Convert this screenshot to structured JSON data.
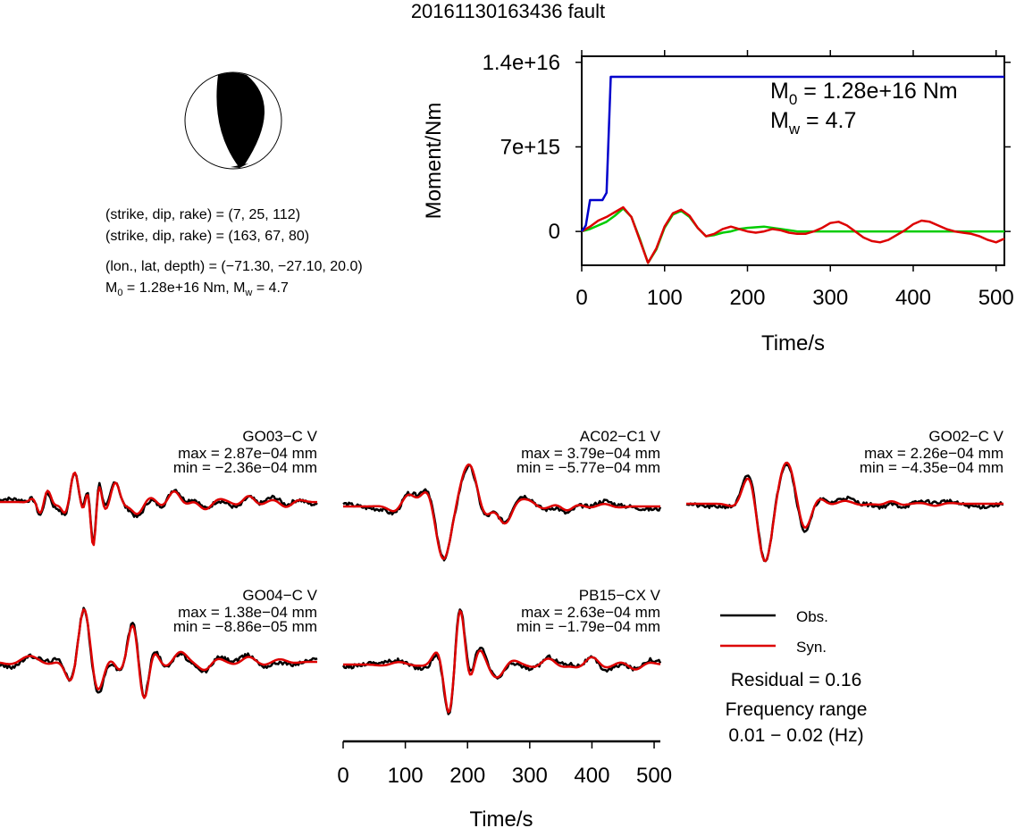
{
  "title": "20161130163436 fault",
  "mechanism": {
    "lines": [
      "(strike, dip, rake) = (7, 25, 112)",
      "(strike, dip, rake) = (163, 67, 80)",
      "(lon., lat, depth) = (−71.30, −27.10, 20.0)"
    ],
    "moment_line_pre": "M",
    "moment_line_sub": "0",
    "moment_line_post": " = 1.28e+16 Nm, M",
    "moment_line_sub2": "w",
    "moment_line_end": " = 4.7"
  },
  "chart_data": [
    {
      "type": "line",
      "name": "moment-rate-function",
      "xlabel": "Time/s",
      "ylabel": "Moment/Nm",
      "xlim": [
        0,
        510
      ],
      "ylim": [
        -2800000000000000.0,
        1.45e+16
      ],
      "xticks": [
        0,
        100,
        200,
        300,
        400,
        500
      ],
      "ytick_values": [
        0,
        7000000000000000.0,
        1.4e+16
      ],
      "ytick_labels": [
        "0",
        "7e+15",
        "1.4e+16"
      ],
      "annotation": {
        "m0_label": "M",
        "m0_sub": "0",
        "m0_value": " = 1.28e+16 Nm",
        "mw_label": "M",
        "mw_sub": "w",
        "mw_value": " = 4.7"
      },
      "series": [
        {
          "color": "#0000cc",
          "x": [
            0,
            5,
            10,
            15,
            20,
            25,
            30,
            35,
            40,
            45,
            50,
            510
          ],
          "y": [
            0,
            500000000000000.0,
            2600000000000000.0,
            2600000000000000.0,
            2600000000000000.0,
            2600000000000000.0,
            3200000000000000.0,
            1.28e+16,
            1.28e+16,
            1.28e+16,
            1.28e+16,
            1.28e+16
          ]
        },
        {
          "color": "#00cc00",
          "x": [
            0,
            10,
            20,
            30,
            40,
            50,
            60,
            70,
            80,
            90,
            100,
            110,
            120,
            130,
            140,
            150,
            160,
            170,
            180,
            190,
            200,
            220,
            240,
            260,
            280,
            300,
            320,
            340,
            360,
            380,
            400,
            420,
            440,
            460,
            480,
            510
          ],
          "y": [
            0,
            200000000000000.0,
            500000000000000.0,
            800000000000000.0,
            1300000000000000.0,
            1900000000000000.0,
            1200000000000000.0,
            -600000000000000.0,
            -2600000000000000.0,
            -1500000000000000.0,
            300000000000000.0,
            1400000000000000.0,
            1700000000000000.0,
            1200000000000000.0,
            300000000000000.0,
            -400000000000000.0,
            -300000000000000.0,
            -100000000000000.0,
            0,
            200000000000000.0,
            300000000000000.0,
            400000000000000.0,
            200000000000000.0,
            0,
            0,
            0,
            0,
            0,
            0,
            0,
            0,
            0,
            0,
            0,
            0,
            0
          ]
        },
        {
          "color": "#dd0000",
          "x": [
            0,
            10,
            20,
            30,
            40,
            50,
            60,
            70,
            80,
            90,
            100,
            110,
            120,
            130,
            140,
            150,
            160,
            170,
            180,
            190,
            200,
            210,
            220,
            230,
            240,
            250,
            260,
            270,
            280,
            290,
            300,
            310,
            320,
            330,
            340,
            350,
            360,
            370,
            380,
            390,
            400,
            410,
            420,
            430,
            440,
            450,
            460,
            470,
            480,
            490,
            500,
            510
          ],
          "y": [
            0,
            400000000000000.0,
            900000000000000.0,
            1200000000000000.0,
            1600000000000000.0,
            2000000000000000.0,
            1200000000000000.0,
            -700000000000000.0,
            -2600000000000000.0,
            -1400000000000000.0,
            400000000000000.0,
            1500000000000000.0,
            1800000000000000.0,
            1300000000000000.0,
            300000000000000.0,
            -400000000000000.0,
            -200000000000000.0,
            200000000000000.0,
            400000000000000.0,
            200000000000000.0,
            0,
            -100000000000000.0,
            0,
            200000000000000.0,
            100000000000000.0,
            -100000000000000.0,
            -200000000000000.0,
            -200000000000000.0,
            0,
            300000000000000.0,
            700000000000000.0,
            800000000000000.0,
            500000000000000.0,
            0,
            -500000000000000.0,
            -800000000000000.0,
            -900000000000000.0,
            -700000000000000.0,
            -300000000000000.0,
            100000000000000.0,
            600000000000000.0,
            900000000000000.0,
            800000000000000.0,
            500000000000000.0,
            200000000000000.0,
            0,
            -100000000000000.0,
            -200000000000000.0,
            -400000000000000.0,
            -700000000000000.0,
            -900000000000000.0,
            -600000000000000.0
          ]
        }
      ]
    },
    {
      "type": "line",
      "name": "waveforms",
      "xlabel": "Time/s",
      "xlim": [
        0,
        510
      ],
      "xticks": [
        0,
        100,
        200,
        300,
        400,
        500
      ],
      "legend": {
        "obs": "Obs.",
        "syn": "Syn.",
        "obs_color": "#000000",
        "syn_color": "#dd0000"
      },
      "residual": "Residual = 0.16",
      "freq_label": "Frequency range",
      "freq_value": "0.01 − 0.02 (Hz)",
      "stations": [
        {
          "name": "GO03−C V",
          "max": "max = 2.87e−04 mm",
          "min": "min = −2.36e−04 mm",
          "seed": 1,
          "events": [
            [
              68,
              55,
              -0.3,
              1.6
            ],
            [
              73,
              55,
              0.3,
              1.6
            ],
            [
              120,
              40,
              0.6,
              1.0
            ],
            [
              150,
              25,
              -0.9,
              1.0
            ],
            [
              185,
              40,
              0.35,
              1.0
            ],
            [
              220,
              60,
              -0.25,
              1.0
            ],
            [
              280,
              55,
              0.22,
              1.0
            ],
            [
              330,
              60,
              -0.15,
              1.0
            ],
            [
              400,
              50,
              0.12,
              1.0
            ],
            [
              460,
              55,
              -0.1,
              1.0
            ]
          ]
        },
        {
          "name": "AC02−C1 V",
          "max": "max = 3.79e−04 mm",
          "min": "min = −5.77e−04 mm",
          "seed": 2,
          "events": [
            [
              105,
              60,
              0.25,
              1.0
            ],
            [
              160,
              70,
              -1.0,
              1.0
            ],
            [
              205,
              70,
              0.75,
              1.0
            ],
            [
              260,
              60,
              -0.35,
              1.0
            ],
            [
              300,
              60,
              0.1,
              1.0
            ],
            [
              360,
              50,
              -0.08,
              1.0
            ],
            [
              420,
              60,
              0.05,
              1.0
            ]
          ]
        },
        {
          "name": "GO02−C V",
          "max": "max = 2.26e−04 mm",
          "min": "min = −4.35e−04 mm",
          "seed": 3,
          "events": [
            [
              105,
              60,
              0.2,
              1.0
            ],
            [
              125,
              70,
              -1.0,
              1.0
            ],
            [
              165,
              70,
              0.5,
              1.0
            ],
            [
              190,
              60,
              -0.3,
              1.0
            ],
            [
              255,
              70,
              0.06,
              1.0
            ],
            [
              330,
              50,
              0.05,
              1.0
            ],
            [
              400,
              60,
              -0.04,
              1.0
            ]
          ]
        },
        {
          "name": "GO04−C V",
          "max": "max = 1.38e−04 mm",
          "min": "min = −8.86e−05 mm",
          "seed": 4,
          "events": [
            [
              48,
              80,
              0.12,
              1.0
            ],
            [
              135,
              55,
              1.0,
              1.0
            ],
            [
              160,
              55,
              -0.2,
              1.0
            ],
            [
              215,
              60,
              0.5,
              1.0
            ],
            [
              230,
              45,
              -0.7,
              1.0
            ],
            [
              290,
              60,
              0.2,
              1.0
            ],
            [
              330,
              55,
              -0.15,
              1.0
            ],
            [
              400,
              60,
              0.1,
              1.0
            ],
            [
              450,
              60,
              0.05,
              1.0
            ]
          ]
        },
        {
          "name": "PB15−CX V",
          "max": "max = 2.63e−04 mm",
          "min": "min = −1.79e−04 mm",
          "seed": 5,
          "events": [
            [
              90,
              70,
              0.05,
              1.0
            ],
            [
              170,
              50,
              -0.6,
              1.0
            ],
            [
              188,
              45,
              1.0,
              1.0
            ],
            [
              215,
              60,
              0.3,
              1.0
            ],
            [
              250,
              60,
              -0.2,
              1.0
            ],
            [
              330,
              60,
              0.12,
              1.0
            ],
            [
              400,
              60,
              0.15,
              1.0
            ],
            [
              470,
              60,
              -0.1,
              1.0
            ]
          ]
        }
      ]
    }
  ]
}
